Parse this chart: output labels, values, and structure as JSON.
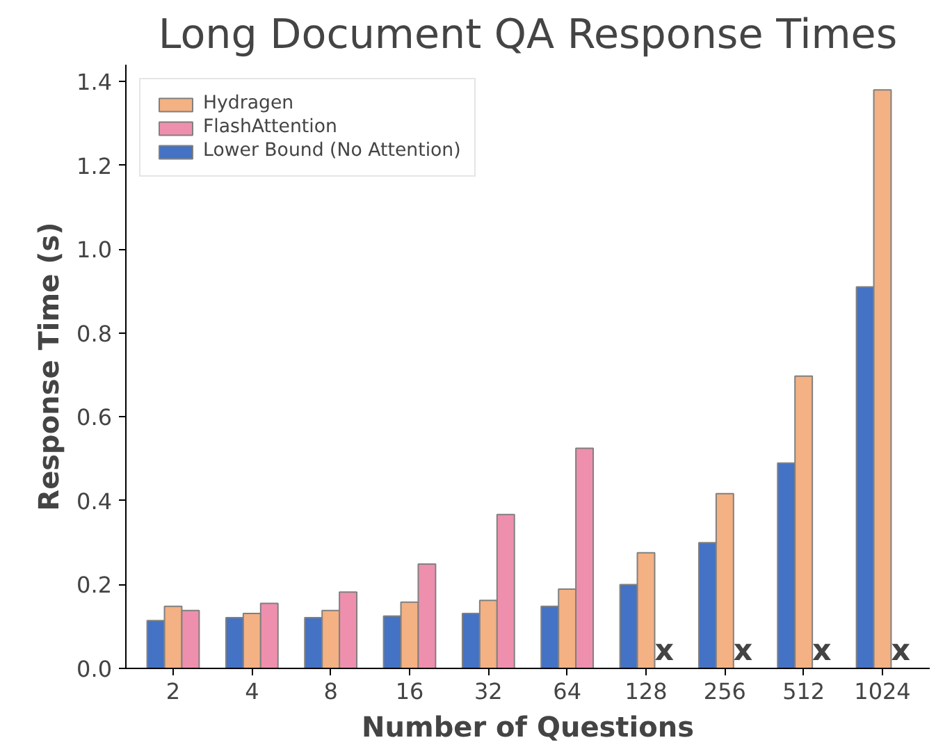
{
  "chart_data": {
    "type": "bar",
    "title": "Long Document QA Response Times",
    "xlabel": "Number of Questions",
    "ylabel": "Response Time (s)",
    "categories": [
      "2",
      "4",
      "8",
      "16",
      "32",
      "64",
      "128",
      "256",
      "512",
      "1024"
    ],
    "series": [
      {
        "name": "Hydragen",
        "color": "#f4b183",
        "values": [
          0.148,
          0.131,
          0.138,
          0.158,
          0.162,
          0.189,
          0.276,
          0.417,
          0.697,
          1.38
        ]
      },
      {
        "name": "FlashAttention",
        "color": "#ef8fae",
        "values": [
          0.138,
          0.155,
          0.182,
          0.249,
          0.367,
          0.525,
          null,
          null,
          null,
          null
        ]
      },
      {
        "name": "Lower Bound (No Attention)",
        "color": "#4472c4",
        "values": [
          0.114,
          0.121,
          0.121,
          0.125,
          0.131,
          0.148,
          0.2,
          0.3,
          0.49,
          0.91
        ]
      }
    ],
    "ylim": [
      0,
      1.44
    ],
    "yticks": [
      {
        "value": 0,
        "label": "0.0"
      },
      0.2,
      0.4,
      0.6,
      0.8,
      {
        "value": 1,
        "label": "1.0"
      },
      1.2,
      1.4
    ],
    "grid": false,
    "legend": "top left",
    "annotations": [
      {
        "text": "x",
        "x": "128",
        "y": 0
      },
      {
        "text": "x",
        "x": "256",
        "y": 0
      },
      {
        "text": "x",
        "x": "512",
        "y": 0
      },
      {
        "text": "x",
        "x": "1024",
        "y": 0
      }
    ]
  }
}
